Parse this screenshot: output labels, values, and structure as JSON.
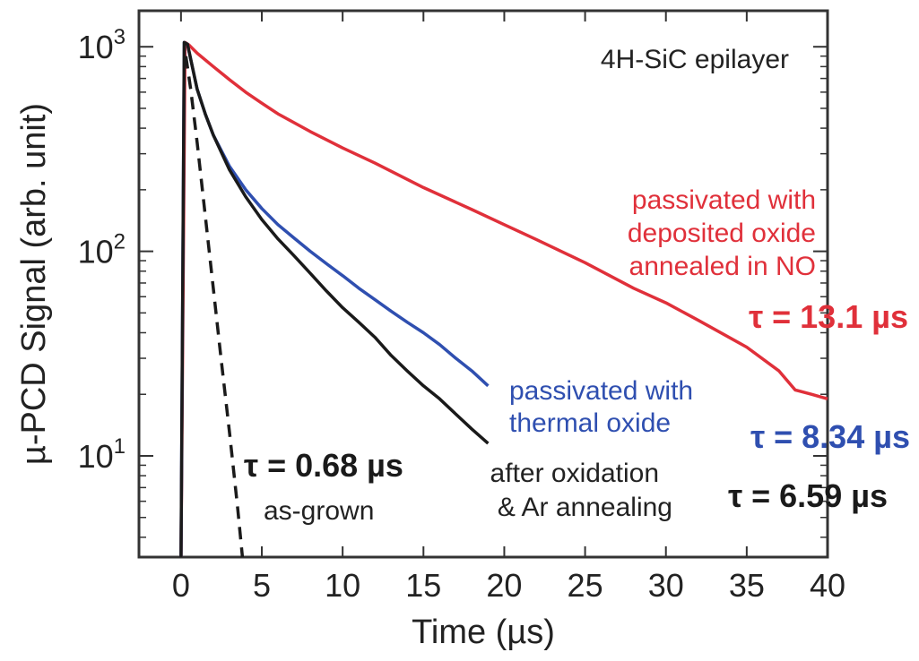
{
  "chart_data": {
    "type": "line",
    "title": "",
    "xlabel": "Time (µs)",
    "ylabel": "µ-PCD Signal (arb. unit)",
    "xlim": [
      -2.6,
      40
    ],
    "ylim": [
      3.2,
      1500
    ],
    "yscale": "log",
    "grid": false,
    "x_ticks": [
      "0",
      "5",
      "10",
      "15",
      "20",
      "25",
      "30",
      "35",
      "40"
    ],
    "y_ticks": [
      {
        "value": 10,
        "base": "10",
        "exp": "1"
      },
      {
        "value": 100,
        "base": "10",
        "exp": "2"
      },
      {
        "value": 1000,
        "base": "10",
        "exp": "3"
      }
    ],
    "series": [
      {
        "color": "#e0303a",
        "line_style": "solid",
        "x": [
          0,
          0.25,
          0.5,
          1,
          2,
          3,
          4,
          5,
          6,
          8,
          10,
          12,
          15,
          18,
          20,
          22,
          25,
          28,
          30,
          32,
          35,
          37,
          38,
          39,
          40
        ],
        "y": [
          3.2,
          1050,
          1020,
          930,
          800,
          690,
          600,
          530,
          470,
          385,
          320,
          270,
          205,
          160,
          135,
          114,
          88,
          66,
          56,
          46,
          34,
          26,
          21,
          20,
          19
        ]
      },
      {
        "color": "#2f4fb0",
        "line_style": "solid",
        "x": [
          0,
          0.2,
          0.4,
          1,
          1.5,
          2,
          3,
          4,
          5,
          6,
          7,
          8,
          9,
          10,
          11,
          12,
          13,
          14,
          15,
          16,
          17,
          18,
          19
        ],
        "y": [
          3.2,
          1050,
          1030,
          620,
          470,
          370,
          260,
          200,
          162,
          135,
          116,
          100,
          87,
          76,
          66,
          58,
          51,
          45,
          40,
          35,
          30,
          26,
          22
        ]
      },
      {
        "color": "#1a1a1a",
        "line_style": "solid",
        "x": [
          0,
          0.2,
          0.4,
          1,
          1.5,
          2,
          3,
          4,
          5,
          6,
          7,
          8,
          9,
          10,
          11,
          12,
          13,
          14,
          15,
          16,
          17,
          18,
          19
        ],
        "y": [
          3.2,
          1050,
          1030,
          620,
          470,
          370,
          250,
          185,
          143,
          115,
          95,
          78,
          64,
          53,
          45,
          38,
          31,
          26,
          22,
          19,
          16,
          13.5,
          11.5
        ]
      },
      {
        "color": "#1a1a1a",
        "line_style": "dashed",
        "x": [
          0.3,
          0.6,
          1,
          1.5,
          2,
          2.5,
          3,
          3.5,
          3.8
        ],
        "y": [
          900,
          620,
          340,
          150,
          66,
          29,
          13,
          5.6,
          3.2
        ]
      }
    ],
    "annotations": [
      {
        "text": "4H-SiC epilayer",
        "color": "#222222"
      },
      {
        "text": "passivated with",
        "color": "#e0303a"
      },
      {
        "text": "deposited oxide",
        "color": "#e0303a"
      },
      {
        "text": "annealed in NO",
        "color": "#e0303a"
      },
      {
        "text": "τ = 13.1 µs",
        "color": "#e0303a"
      },
      {
        "text": "passivated with",
        "color": "#2f4fb0"
      },
      {
        "text": "thermal oxide",
        "color": "#2f4fb0"
      },
      {
        "text": "τ = 8.34 µs",
        "color": "#2f4fb0"
      },
      {
        "text": "after oxidation",
        "color": "#222222"
      },
      {
        "text": "& Ar annealing",
        "color": "#222222"
      },
      {
        "text": "τ = 6.59 µs",
        "color": "#1a1a1a"
      },
      {
        "text": "τ = 0.68 µs",
        "color": "#1a1a1a"
      },
      {
        "text": "as-grown",
        "color": "#222222"
      }
    ]
  }
}
